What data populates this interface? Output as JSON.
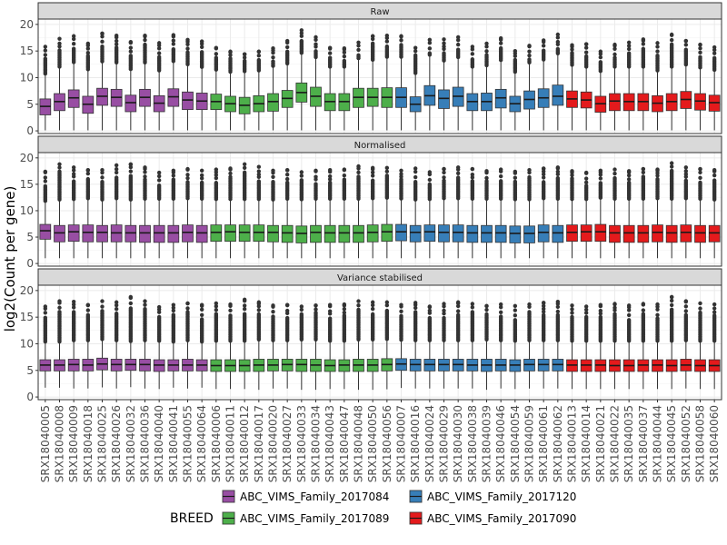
{
  "chart_data": {
    "type": "boxplot",
    "ylabel": "log2(Count per gene)",
    "ylim": [
      -0.5,
      21
    ],
    "yticks": [
      0,
      5,
      10,
      15,
      20
    ],
    "grid": true,
    "legend_placement": "bottom",
    "legend": {
      "title": "BREED",
      "entries": [
        {
          "name": "ABC_VIMS_Family_2017084",
          "color": "#984ea3"
        },
        {
          "name": "ABC_VIMS_Family_2017120",
          "color": "#377eb8"
        },
        {
          "name": "ABC_VIMS_Family_2017089",
          "color": "#4daf4a"
        },
        {
          "name": "ABC_VIMS_Family_2017090",
          "color": "#e41a1c"
        }
      ]
    },
    "samples": [
      {
        "id": "SRX18040005",
        "group": 0
      },
      {
        "id": "SRX18040008",
        "group": 0
      },
      {
        "id": "SRX18040009",
        "group": 0
      },
      {
        "id": "SRX18040018",
        "group": 0
      },
      {
        "id": "SRX18040025",
        "group": 0
      },
      {
        "id": "SRX18040026",
        "group": 0
      },
      {
        "id": "SRX18040032",
        "group": 0
      },
      {
        "id": "SRX18040036",
        "group": 0
      },
      {
        "id": "SRX18040040",
        "group": 0
      },
      {
        "id": "SRX18040041",
        "group": 0
      },
      {
        "id": "SRX18040055",
        "group": 0
      },
      {
        "id": "SRX18040064",
        "group": 0
      },
      {
        "id": "SRX18040006",
        "group": 2
      },
      {
        "id": "SRX18040011",
        "group": 2
      },
      {
        "id": "SRX18040012",
        "group": 2
      },
      {
        "id": "SRX18040017",
        "group": 2
      },
      {
        "id": "SRX18040020",
        "group": 2
      },
      {
        "id": "SRX18040027",
        "group": 2
      },
      {
        "id": "SRX18040033",
        "group": 2
      },
      {
        "id": "SRX18040034",
        "group": 2
      },
      {
        "id": "SRX18040043",
        "group": 2
      },
      {
        "id": "SRX18040047",
        "group": 2
      },
      {
        "id": "SRX18040048",
        "group": 2
      },
      {
        "id": "SRX18040050",
        "group": 2
      },
      {
        "id": "SRX18040056",
        "group": 2
      },
      {
        "id": "SRX18040007",
        "group": 1
      },
      {
        "id": "SRX18040016",
        "group": 1
      },
      {
        "id": "SRX18040024",
        "group": 1
      },
      {
        "id": "SRX18040029",
        "group": 1
      },
      {
        "id": "SRX18040030",
        "group": 1
      },
      {
        "id": "SRX18040038",
        "group": 1
      },
      {
        "id": "SRX18040039",
        "group": 1
      },
      {
        "id": "SRX18040046",
        "group": 1
      },
      {
        "id": "SRX18040054",
        "group": 1
      },
      {
        "id": "SRX18040059",
        "group": 1
      },
      {
        "id": "SRX18040061",
        "group": 1
      },
      {
        "id": "SRX18040062",
        "group": 1
      },
      {
        "id": "SRX18040013",
        "group": 3
      },
      {
        "id": "SRX18040014",
        "group": 3
      },
      {
        "id": "SRX18040021",
        "group": 3
      },
      {
        "id": "SRX18040022",
        "group": 3
      },
      {
        "id": "SRX18040035",
        "group": 3
      },
      {
        "id": "SRX18040037",
        "group": 3
      },
      {
        "id": "SRX18040044",
        "group": 3
      },
      {
        "id": "SRX18040045",
        "group": 3
      },
      {
        "id": "SRX18040052",
        "group": 3
      },
      {
        "id": "SRX18040058",
        "group": 3
      },
      {
        "id": "SRX18040060",
        "group": 3
      }
    ],
    "panels": [
      {
        "title": "Raw",
        "q1": [
          3.0,
          3.8,
          4.4,
          3.3,
          4.8,
          4.6,
          3.6,
          4.6,
          3.6,
          4.6,
          4.0,
          4.0,
          4.0,
          3.6,
          3.2,
          3.6,
          3.7,
          4.4,
          5.4,
          4.6,
          3.8,
          3.8,
          4.4,
          4.6,
          4.4,
          4.4,
          3.6,
          4.8,
          4.2,
          4.6,
          3.8,
          3.8,
          4.3,
          3.6,
          4.1,
          4.4,
          4.8,
          4.4,
          4.3,
          3.5,
          3.8,
          3.8,
          3.8,
          3.6,
          3.8,
          4.2,
          3.9,
          3.7
        ],
        "median": [
          4.6,
          5.5,
          6.2,
          5.0,
          6.5,
          6.3,
          5.3,
          6.3,
          5.2,
          6.4,
          5.8,
          5.6,
          5.5,
          5.1,
          4.8,
          5.1,
          5.5,
          6.1,
          7.2,
          6.5,
          5.5,
          5.5,
          6.3,
          6.3,
          6.3,
          6.3,
          5.0,
          6.6,
          6.1,
          6.5,
          5.5,
          5.5,
          6.2,
          5.1,
          5.9,
          6.2,
          6.5,
          6.0,
          5.8,
          5.1,
          5.6,
          5.5,
          5.5,
          5.2,
          5.5,
          5.9,
          5.6,
          5.3
        ],
        "q3": [
          6.0,
          7.0,
          7.7,
          6.5,
          8.0,
          7.8,
          6.7,
          7.8,
          6.6,
          7.9,
          7.3,
          7.1,
          6.9,
          6.5,
          6.3,
          6.6,
          7.0,
          7.6,
          9.0,
          8.2,
          7.0,
          7.0,
          8.0,
          8.0,
          8.1,
          8.1,
          6.4,
          8.5,
          7.7,
          8.2,
          7.0,
          7.1,
          7.8,
          6.5,
          7.5,
          7.9,
          8.6,
          7.5,
          7.3,
          6.5,
          7.0,
          7.0,
          7.0,
          6.6,
          7.0,
          7.4,
          7.0,
          6.7
        ],
        "upper": [
          15.8,
          17.3,
          17.8,
          16.4,
          18.3,
          17.9,
          16.7,
          17.9,
          16.5,
          18.0,
          17.1,
          16.8,
          15.6,
          14.9,
          14.4,
          14.9,
          15.5,
          16.9,
          18.9,
          17.6,
          15.6,
          15.5,
          16.6,
          17.8,
          17.9,
          17.8,
          15.6,
          17.1,
          17.2,
          17.6,
          15.8,
          16.4,
          17.4,
          15.0,
          16.0,
          17.0,
          18.1,
          16.1,
          16.3,
          14.9,
          16.2,
          16.6,
          17.2,
          16.5,
          18.1,
          16.9,
          16.2,
          15.7
        ],
        "whisker_low": 0.1
      },
      {
        "title": "Normalised",
        "q1": [
          4.6,
          4.1,
          4.2,
          4.1,
          4.1,
          4.1,
          4.1,
          4.0,
          4.0,
          4.0,
          4.1,
          4.0,
          4.2,
          4.2,
          4.2,
          4.2,
          4.1,
          4.0,
          3.9,
          4.0,
          4.0,
          4.0,
          4.0,
          4.1,
          4.2,
          4.3,
          4.1,
          4.2,
          4.1,
          4.1,
          4.0,
          4.0,
          4.0,
          3.9,
          3.9,
          4.1,
          4.0,
          4.2,
          4.2,
          4.2,
          4.0,
          4.0,
          4.0,
          4.1,
          4.0,
          4.1,
          4.0,
          4.1
        ],
        "median": [
          6.2,
          5.8,
          6.0,
          5.9,
          5.9,
          5.8,
          5.8,
          5.8,
          5.8,
          5.8,
          5.9,
          5.8,
          5.9,
          6.0,
          5.9,
          5.9,
          5.9,
          5.8,
          5.7,
          5.9,
          5.8,
          5.8,
          5.8,
          5.9,
          6.0,
          6.0,
          5.9,
          6.0,
          5.9,
          5.9,
          5.8,
          5.8,
          5.8,
          5.7,
          5.7,
          5.9,
          5.8,
          5.9,
          6.0,
          6.0,
          5.8,
          5.8,
          5.8,
          5.9,
          5.8,
          5.9,
          5.8,
          5.8
        ],
        "q3": [
          7.4,
          7.2,
          7.3,
          7.3,
          7.2,
          7.3,
          7.2,
          7.2,
          7.2,
          7.2,
          7.3,
          7.2,
          7.3,
          7.3,
          7.3,
          7.3,
          7.2,
          7.2,
          7.1,
          7.2,
          7.2,
          7.2,
          7.2,
          7.3,
          7.4,
          7.4,
          7.2,
          7.3,
          7.3,
          7.3,
          7.2,
          7.2,
          7.2,
          7.1,
          7.1,
          7.3,
          7.2,
          7.3,
          7.3,
          7.4,
          7.2,
          7.2,
          7.2,
          7.3,
          7.2,
          7.3,
          7.2,
          7.2
        ],
        "upper": [
          17.4,
          18.8,
          18.2,
          17.7,
          17.7,
          18.6,
          18.8,
          18.2,
          17.2,
          17.6,
          17.9,
          17.6,
          17.8,
          18.0,
          18.8,
          18.3,
          17.6,
          17.7,
          17.3,
          17.6,
          17.7,
          17.8,
          18.4,
          18.1,
          18.1,
          17.6,
          18.0,
          17.3,
          17.9,
          18.2,
          17.9,
          17.5,
          17.8,
          17.4,
          17.7,
          18.0,
          18.2,
          17.5,
          17.2,
          17.6,
          17.8,
          17.5,
          17.9,
          17.8,
          19.0,
          18.2,
          17.9,
          17.7
        ],
        "whisker_low": 1.0
      },
      {
        "title": "Variance stabilised",
        "q1": [
          4.9,
          4.9,
          4.9,
          4.9,
          5.1,
          4.9,
          5.0,
          4.9,
          4.8,
          4.9,
          4.9,
          4.9,
          4.8,
          4.8,
          4.8,
          4.8,
          4.9,
          4.9,
          4.8,
          4.8,
          4.8,
          4.8,
          4.8,
          4.8,
          4.9,
          5.0,
          4.9,
          4.9,
          4.9,
          4.9,
          4.9,
          4.8,
          4.9,
          4.8,
          4.9,
          4.9,
          4.9,
          4.8,
          4.8,
          4.8,
          4.8,
          4.8,
          4.8,
          4.8,
          4.8,
          4.9,
          4.8,
          4.8
        ],
        "median": [
          6.0,
          6.0,
          6.1,
          6.0,
          6.2,
          6.1,
          6.1,
          6.1,
          6.0,
          6.0,
          6.0,
          6.0,
          5.9,
          5.9,
          5.9,
          6.0,
          6.0,
          6.1,
          6.1,
          6.0,
          5.9,
          6.0,
          6.0,
          6.0,
          6.1,
          6.2,
          6.1,
          6.1,
          6.1,
          6.1,
          6.0,
          6.0,
          6.0,
          6.0,
          6.1,
          6.1,
          6.1,
          6.0,
          6.0,
          6.0,
          5.9,
          5.9,
          6.0,
          6.0,
          5.9,
          6.0,
          5.9,
          5.9
        ],
        "q3": [
          7.0,
          7.0,
          7.1,
          7.1,
          7.3,
          7.1,
          7.1,
          7.1,
          7.0,
          7.0,
          7.1,
          7.0,
          7.0,
          7.0,
          7.0,
          7.1,
          7.1,
          7.1,
          7.1,
          7.1,
          7.0,
          7.0,
          7.1,
          7.1,
          7.2,
          7.2,
          7.1,
          7.1,
          7.1,
          7.1,
          7.1,
          7.1,
          7.1,
          7.0,
          7.1,
          7.1,
          7.1,
          7.0,
          7.0,
          7.0,
          7.0,
          7.0,
          7.0,
          7.0,
          7.0,
          7.1,
          7.0,
          7.0
        ],
        "upper": [
          17.0,
          18.0,
          17.9,
          17.3,
          18.0,
          17.8,
          18.8,
          18.0,
          16.9,
          17.3,
          17.6,
          17.3,
          17.6,
          17.4,
          18.3,
          17.8,
          17.2,
          17.3,
          17.0,
          17.2,
          17.3,
          17.4,
          18.0,
          17.8,
          17.8,
          17.3,
          17.7,
          17.0,
          17.5,
          17.8,
          17.5,
          17.1,
          17.4,
          17.1,
          17.4,
          17.7,
          17.9,
          17.2,
          17.0,
          17.3,
          17.5,
          17.2,
          17.5,
          17.4,
          18.8,
          18.0,
          17.6,
          17.4
        ],
        "whisker_low": 0.8
      }
    ]
  }
}
